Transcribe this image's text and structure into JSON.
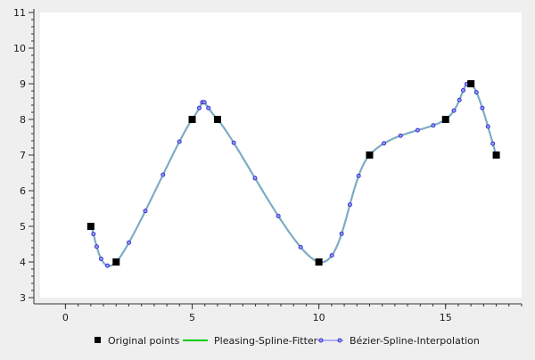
{
  "chart_data": {
    "type": "line",
    "xlim": [
      -1,
      18
    ],
    "ylim": [
      3,
      11
    ],
    "x_major_ticks": [
      0,
      5,
      10,
      15
    ],
    "y_major_ticks": [
      3,
      4,
      5,
      6,
      7,
      8,
      9,
      10,
      11
    ],
    "grid": false,
    "legend_position": "bottom",
    "series": [
      {
        "name": "Original points",
        "kind": "markers",
        "color": "#000000",
        "points": [
          [
            1,
            5
          ],
          [
            2,
            4
          ],
          [
            5,
            8
          ],
          [
            6,
            8
          ],
          [
            10,
            4
          ],
          [
            12,
            7
          ],
          [
            15,
            8
          ],
          [
            16,
            9
          ],
          [
            17,
            7
          ]
        ]
      },
      {
        "name": "Pleasing-Spline-Fitter",
        "kind": "line",
        "color": "#00cc00",
        "points": [
          [
            1,
            5
          ],
          [
            2,
            4
          ],
          [
            5,
            8
          ],
          [
            6,
            8
          ],
          [
            10,
            4
          ],
          [
            12,
            7
          ],
          [
            15,
            8
          ],
          [
            16,
            9
          ],
          [
            17,
            7
          ]
        ]
      },
      {
        "name": "Bézier-Spline-Interpolation",
        "kind": "line-markers",
        "color": "#9999ff",
        "marker_color": "#3333cc",
        "points": [
          [
            1,
            5
          ],
          [
            2,
            4
          ],
          [
            5,
            8
          ],
          [
            6,
            8
          ],
          [
            10,
            4
          ],
          [
            12,
            7
          ],
          [
            15,
            8
          ],
          [
            16,
            9
          ],
          [
            17,
            7
          ]
        ]
      }
    ]
  },
  "legend": {
    "original_label": "Original points",
    "pleasing_label": "Pleasing-Spline-Fitter",
    "bezier_label": "Bézier-Spline-Interpolation"
  }
}
